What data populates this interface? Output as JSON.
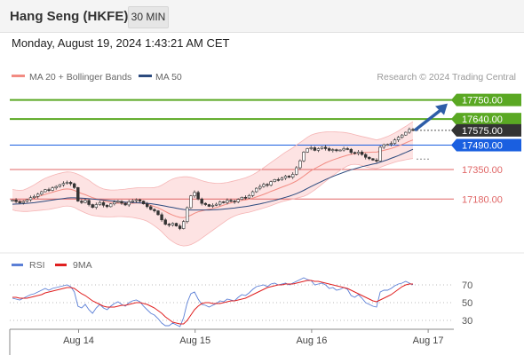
{
  "header": {
    "title": "Hang Seng (HKFE)",
    "timeframe": "30 MIN",
    "datetime": "Monday, August 19, 2024 1:43:21 AM CET"
  },
  "legend": [
    {
      "label": "MA 20 + Bollinger Bands",
      "color": "#f28b82"
    },
    {
      "label": "MA 50",
      "color": "#2c4a7e"
    }
  ],
  "attribution": "Research © 2024 Trading Central",
  "rsi_legend": [
    {
      "label": "RSI",
      "color": "#5b7fd6"
    },
    {
      "label": "9MA",
      "color": "#e02020"
    }
  ],
  "chart_data": [
    {
      "type": "candlestick",
      "title": "Hang Seng (HKFE)",
      "ylim": [
        16880,
        17840
      ],
      "levels": [
        {
          "value": 17750,
          "label": "17750.00",
          "color": "#5aa823",
          "style": "resistance"
        },
        {
          "value": 17640,
          "label": "17640.00",
          "color": "#5aa823",
          "style": "resistance"
        },
        {
          "value": 17575,
          "label": "17575.00",
          "color": "#333333",
          "style": "last-price"
        },
        {
          "value": 17490,
          "label": "17490.00",
          "color": "#1a5fe0",
          "style": "pivot"
        },
        {
          "value": 17350,
          "label": "17350.00",
          "color": "#e06666",
          "style": "support"
        },
        {
          "value": 17180,
          "label": "17180.00",
          "color": "#e06666",
          "style": "support"
        }
      ],
      "x_ticks": [
        {
          "label": "Aug 14",
          "index": 15
        },
        {
          "label": "Aug 15",
          "index": 47
        },
        {
          "label": "Aug 16",
          "index": 79
        },
        {
          "label": "Aug 17",
          "index": 111
        }
      ],
      "close": [
        17174,
        17165,
        17158,
        17166,
        17176,
        17188,
        17195,
        17208,
        17222,
        17234,
        17230,
        17244,
        17252,
        17262,
        17270,
        17276,
        17268,
        17246,
        17168,
        17160,
        17172,
        17148,
        17132,
        17148,
        17160,
        17144,
        17136,
        17152,
        17162,
        17166,
        17156,
        17146,
        17164,
        17170,
        17176,
        17168,
        17152,
        17136,
        17120,
        17112,
        17090,
        17060,
        17035,
        17030,
        17040,
        17025,
        17010,
        17050,
        17130,
        17198,
        17218,
        17180,
        17155,
        17148,
        17138,
        17144,
        17150,
        17164,
        17160,
        17172,
        17168,
        17164,
        17178,
        17190,
        17186,
        17200,
        17222,
        17242,
        17252,
        17264,
        17260,
        17280,
        17292,
        17290,
        17300,
        17312,
        17306,
        17322,
        17360,
        17400,
        17450,
        17470,
        17475,
        17460,
        17470,
        17478,
        17470,
        17460,
        17464,
        17458,
        17462,
        17470,
        17466,
        17448,
        17442,
        17450,
        17436,
        17420,
        17412,
        17404,
        17398,
        17478,
        17492,
        17494,
        17500,
        17520,
        17535,
        17548,
        17564,
        17580,
        17575
      ],
      "ma20": [
        17176,
        17172,
        17170,
        17170,
        17174,
        17180,
        17186,
        17193,
        17200,
        17207,
        17213,
        17219,
        17225,
        17231,
        17236,
        17238,
        17236,
        17230,
        17220,
        17212,
        17205,
        17196,
        17188,
        17182,
        17176,
        17170,
        17165,
        17161,
        17158,
        17156,
        17155,
        17154,
        17155,
        17156,
        17157,
        17157,
        17155,
        17150,
        17144,
        17137,
        17129,
        17119,
        17108,
        17097,
        17088,
        17080,
        17074,
        17073,
        17078,
        17087,
        17098,
        17106,
        17112,
        17117,
        17121,
        17126,
        17131,
        17138,
        17145,
        17152,
        17158,
        17164,
        17168,
        17172,
        17175,
        17179,
        17185,
        17192,
        17199,
        17207,
        17215,
        17224,
        17232,
        17240,
        17248,
        17256,
        17264,
        17273,
        17284,
        17297,
        17312,
        17328,
        17343,
        17355,
        17366,
        17377,
        17388,
        17397,
        17405,
        17412,
        17419,
        17426,
        17432,
        17437,
        17440,
        17443,
        17446,
        17448,
        17449,
        17450,
        17450,
        17455,
        17460,
        17465,
        17471,
        17478,
        17486,
        17494,
        17503,
        17512,
        17520
      ],
      "ma50": [
        17150,
        17151,
        17152,
        17153,
        17155,
        17157,
        17159,
        17162,
        17165,
        17168,
        17171,
        17174,
        17177,
        17180,
        17183,
        17186,
        17187,
        17187,
        17186,
        17185,
        17184,
        17182,
        17180,
        17178,
        17176,
        17174,
        17172,
        17170,
        17168,
        17166,
        17164,
        17162,
        17161,
        17160,
        17159,
        17158,
        17157,
        17155,
        17153,
        17150,
        17147,
        17143,
        17139,
        17135,
        17131,
        17127,
        17123,
        17120,
        17118,
        17117,
        17117,
        17117,
        17117,
        17117,
        17117,
        17118,
        17119,
        17120,
        17122,
        17124,
        17126,
        17128,
        17131,
        17134,
        17137,
        17140,
        17144,
        17148,
        17152,
        17157,
        17162,
        17167,
        17172,
        17178,
        17184,
        17190,
        17196,
        17203,
        17211,
        17220,
        17230,
        17241,
        17252,
        17262,
        17272,
        17282,
        17292,
        17301,
        17310,
        17318,
        17326,
        17334,
        17341,
        17348,
        17354,
        17360,
        17366,
        17371,
        17376,
        17381,
        17385,
        17392,
        17399,
        17406,
        17414,
        17422,
        17430,
        17439,
        17448,
        17457,
        17466
      ],
      "bb_upper": [
        17235,
        17232,
        17230,
        17232,
        17240,
        17250,
        17262,
        17275,
        17288,
        17300,
        17308,
        17315,
        17322,
        17328,
        17333,
        17336,
        17335,
        17330,
        17322,
        17312,
        17300,
        17288,
        17272,
        17258,
        17246,
        17238,
        17234,
        17232,
        17232,
        17233,
        17235,
        17237,
        17240,
        17242,
        17244,
        17245,
        17245,
        17245,
        17245,
        17246,
        17250,
        17260,
        17272,
        17285,
        17295,
        17302,
        17306,
        17308,
        17308,
        17305,
        17300,
        17293,
        17286,
        17280,
        17275,
        17272,
        17270,
        17270,
        17272,
        17275,
        17280,
        17285,
        17290,
        17296,
        17302,
        17310,
        17320,
        17332,
        17345,
        17360,
        17375,
        17390,
        17405,
        17420,
        17435,
        17450,
        17462,
        17475,
        17490,
        17505,
        17520,
        17535,
        17548,
        17555,
        17560,
        17564,
        17566,
        17567,
        17567,
        17566,
        17565,
        17563,
        17560,
        17556,
        17550,
        17545,
        17540,
        17535,
        17530,
        17525,
        17520,
        17525,
        17532,
        17540,
        17550,
        17560,
        17572,
        17585,
        17598,
        17612,
        17625
      ],
      "bb_lower": [
        17118,
        17112,
        17110,
        17108,
        17108,
        17110,
        17112,
        17114,
        17116,
        17118,
        17120,
        17124,
        17128,
        17133,
        17138,
        17140,
        17138,
        17132,
        17120,
        17110,
        17100,
        17092,
        17086,
        17082,
        17080,
        17078,
        17077,
        17077,
        17078,
        17079,
        17079,
        17078,
        17076,
        17074,
        17070,
        17066,
        17060,
        17052,
        17040,
        17026,
        17010,
        16992,
        16970,
        16950,
        16935,
        16922,
        16914,
        16910,
        16912,
        16918,
        16928,
        16940,
        16955,
        16970,
        16985,
        17000,
        17015,
        17030,
        17045,
        17060,
        17072,
        17082,
        17090,
        17096,
        17100,
        17104,
        17110,
        17116,
        17122,
        17128,
        17135,
        17142,
        17150,
        17158,
        17165,
        17170,
        17175,
        17180,
        17185,
        17190,
        17195,
        17205,
        17218,
        17232,
        17248,
        17265,
        17282,
        17300,
        17315,
        17330,
        17345,
        17358,
        17370,
        17378,
        17380,
        17378,
        17372,
        17365,
        17360,
        17357,
        17355,
        17362,
        17370,
        17378,
        17385,
        17392,
        17398,
        17402,
        17406,
        17410,
        17413
      ]
    },
    {
      "type": "line",
      "title": "RSI",
      "ylim": [
        20,
        80
      ],
      "y_ticks": [
        70,
        50,
        30
      ],
      "series": [
        {
          "name": "RSI",
          "values": [
            55,
            54,
            53,
            55,
            57,
            59,
            60,
            62,
            64,
            66,
            64,
            66,
            67,
            68,
            69,
            70,
            68,
            62,
            46,
            44,
            48,
            42,
            38,
            44,
            48,
            44,
            42,
            46,
            49,
            51,
            48,
            46,
            50,
            52,
            53,
            51,
            46,
            42,
            38,
            36,
            32,
            27,
            24,
            24,
            27,
            25,
            23,
            33,
            50,
            60,
            62,
            54,
            48,
            47,
            45,
            47,
            49,
            52,
            51,
            54,
            53,
            52,
            56,
            59,
            58,
            61,
            65,
            68,
            69,
            70,
            68,
            71,
            72,
            70,
            71,
            72,
            70,
            72,
            74,
            76,
            78,
            76,
            75,
            70,
            71,
            72,
            70,
            66,
            67,
            64,
            65,
            67,
            65,
            58,
            56,
            59,
            55,
            50,
            48,
            46,
            45,
            62,
            64,
            64,
            66,
            69,
            71,
            72,
            74,
            72,
            70
          ]
        },
        {
          "name": "9MA",
          "values": [
            56,
            56,
            55,
            55,
            55,
            56,
            57,
            58,
            59,
            61,
            62,
            63,
            64,
            65,
            66,
            67,
            67,
            66,
            63,
            60,
            58,
            55,
            52,
            50,
            48,
            46,
            45,
            45,
            45,
            46,
            47,
            47,
            48,
            49,
            50,
            50,
            49,
            48,
            46,
            44,
            41,
            38,
            34,
            31,
            28,
            27,
            26,
            26,
            30,
            36,
            42,
            46,
            49,
            50,
            50,
            49,
            49,
            49,
            50,
            51,
            52,
            52,
            53,
            54,
            55,
            57,
            59,
            61,
            63,
            65,
            67,
            68,
            69,
            70,
            70,
            71,
            71,
            71,
            72,
            73,
            74,
            75,
            75,
            74,
            74,
            73,
            72,
            71,
            70,
            69,
            68,
            67,
            66,
            64,
            62,
            60,
            58,
            56,
            54,
            52,
            51,
            53,
            55,
            57,
            59,
            62,
            65,
            68,
            70,
            71,
            71
          ]
        }
      ]
    }
  ]
}
